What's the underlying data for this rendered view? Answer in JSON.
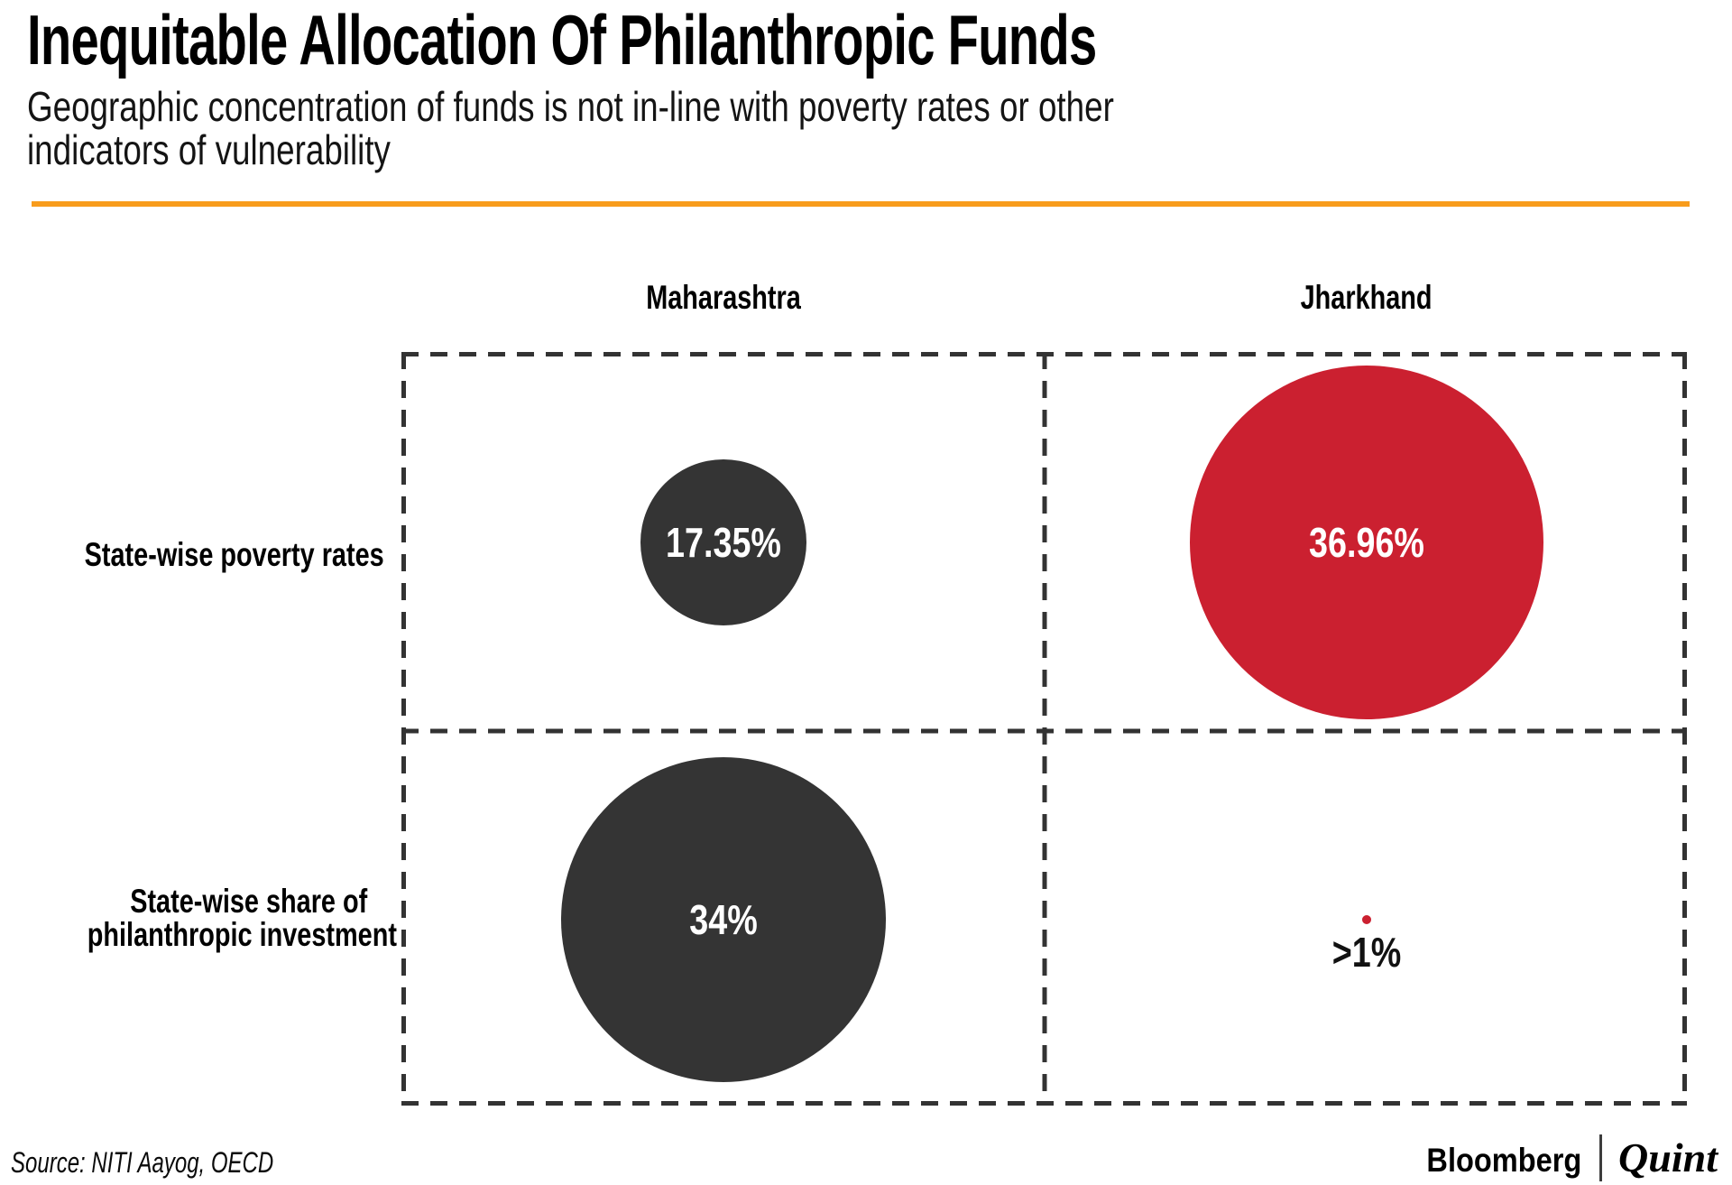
{
  "page": {
    "title": "Inequitable Allocation Of Philanthropic Funds",
    "subtitle": "Geographic concentration of funds is not in-line with poverty rates or other indicators of vulnerability",
    "subtitle_lines": [
      "Geographic concentration of funds is not in-line with poverty rates or other",
      "indicators of vulnerability"
    ],
    "accent_color": "#F89C1C"
  },
  "chart_data": {
    "type": "scatter",
    "subtype": "bubble-comparison-matrix",
    "title": "Inequitable Allocation Of Philanthropic Funds",
    "subtitle": "Geographic concentration of funds is not in-line with poverty rates or other indicators of vulnerability",
    "columns": [
      "Maharashtra",
      "Jharkhand"
    ],
    "rows": [
      "State-wise poverty rates",
      "State-wise share of philanthropic investment"
    ],
    "row_label_lines": [
      [
        "State-wise poverty rates"
      ],
      [
        "State-wise share of",
        "philanthropic investment"
      ]
    ],
    "cells": [
      {
        "row_index": 0,
        "col_index": 0,
        "row": "State-wise poverty rates",
        "column": "Maharashtra",
        "label": "17.35%",
        "value": 17.35,
        "bubble_color": "#343434",
        "label_color": "#ffffff",
        "label_position": "inside"
      },
      {
        "row_index": 0,
        "col_index": 1,
        "row": "State-wise poverty rates",
        "column": "Jharkhand",
        "label": "36.96%",
        "value": 36.96,
        "bubble_color": "#CB2030",
        "label_color": "#ffffff",
        "label_position": "inside"
      },
      {
        "row_index": 1,
        "col_index": 0,
        "row": "State-wise share of philanthropic investment",
        "column": "Maharashtra",
        "label": "34%",
        "value": 34,
        "bubble_color": "#343434",
        "label_color": "#ffffff",
        "label_position": "inside"
      },
      {
        "row_index": 1,
        "col_index": 1,
        "row": "State-wise share of philanthropic investment",
        "column": "Jharkhand",
        "label": ">1%",
        "value": 1,
        "bubble_color": "#CB2030",
        "label_color": "#111111",
        "label_position": "below"
      }
    ],
    "radius_px_per_percent": 5.3,
    "grid": {
      "style": "dashed",
      "color": "#333333"
    },
    "legend_position": "none",
    "source": "Source: NITI Aayog, OECD"
  },
  "footer": {
    "source": "Source: NITI Aayog, OECD",
    "brand_bloomberg": "Bloomberg",
    "brand_quint": "Quint"
  }
}
